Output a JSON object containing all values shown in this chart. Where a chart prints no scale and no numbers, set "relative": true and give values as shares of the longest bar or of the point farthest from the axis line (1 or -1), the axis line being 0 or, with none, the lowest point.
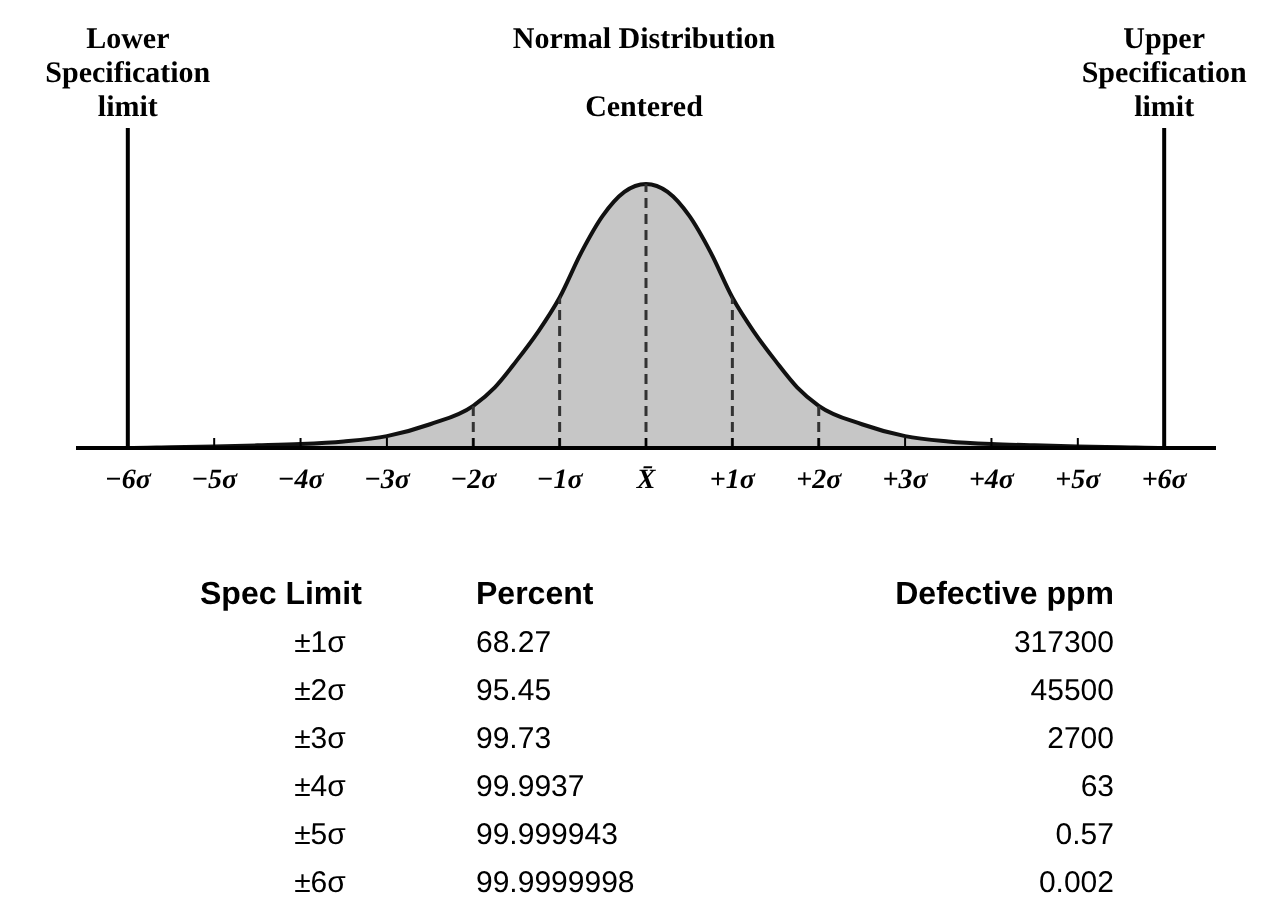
{
  "chart_data": {
    "type": "area",
    "title": "Normal Distribution",
    "subtitle": "Centered",
    "relative": true,
    "x": [
      -6.6,
      -6,
      -5.5,
      -5,
      -4.5,
      -4,
      -3.5,
      -3,
      -2.5,
      -2,
      -1.75,
      -1.5,
      -1.25,
      -1,
      -0.75,
      -0.5,
      -0.25,
      0,
      0.25,
      0.5,
      0.75,
      1,
      1.25,
      1.5,
      1.75,
      2,
      2.5,
      3,
      3.5,
      4,
      4.5,
      5,
      5.5,
      6,
      6.6
    ],
    "series": [
      {
        "color": "#b8b8b8",
        "values": [
          0,
          0,
          0.003,
          0.006,
          0.01,
          0.015,
          0.025,
          0.045,
          0.09,
          0.16,
          0.23,
          0.33,
          0.44,
          0.57,
          0.74,
          0.88,
          0.97,
          1,
          0.97,
          0.88,
          0.74,
          0.57,
          0.44,
          0.33,
          0.23,
          0.16,
          0.09,
          0.045,
          0.025,
          0.015,
          0.01,
          0.006,
          0.003,
          0,
          0
        ]
      }
    ],
    "xlim": [
      -6.6,
      6.6
    ],
    "xticks": [
      {
        "value": -6,
        "label": "−6σ"
      },
      {
        "value": -5,
        "label": "−5σ"
      },
      {
        "value": -4,
        "label": "−4σ"
      },
      {
        "value": -3,
        "label": "−3σ"
      },
      {
        "value": -2,
        "label": "−2σ"
      },
      {
        "value": -1,
        "label": "−1σ"
      },
      {
        "value": 0,
        "label": "X̄"
      },
      {
        "value": 1,
        "label": "+1σ"
      },
      {
        "value": 2,
        "label": "+2σ"
      },
      {
        "value": 3,
        "label": "+3σ"
      },
      {
        "value": 4,
        "label": "+4σ"
      },
      {
        "value": 5,
        "label": "+5σ"
      },
      {
        "value": 6,
        "label": "+6σ"
      }
    ],
    "ref_lines": [
      {
        "axis": "x",
        "value": -6,
        "label": "Lower Specification limit",
        "color": "#000000",
        "line_style": "solid"
      },
      {
        "axis": "x",
        "value": 6,
        "label": "Upper Specification limit",
        "color": "#000000",
        "line_style": "solid"
      },
      {
        "axis": "x",
        "value": -2,
        "color": "#333333",
        "line_style": "dashed"
      },
      {
        "axis": "x",
        "value": -1,
        "color": "#333333",
        "line_style": "dashed"
      },
      {
        "axis": "x",
        "value": 0,
        "color": "#333333",
        "line_style": "dashed"
      },
      {
        "axis": "x",
        "value": 1,
        "color": "#333333",
        "line_style": "dashed"
      },
      {
        "axis": "x",
        "value": 2,
        "color": "#333333",
        "line_style": "dashed"
      }
    ],
    "annotations": [
      "Spec Limit",
      "Percent",
      "Defective ppm",
      "±1σ",
      "68.27",
      "317300",
      "±2σ",
      "95.45",
      "45500",
      "±3σ",
      "99.73",
      "2700",
      "±4σ",
      "99.9937",
      "63",
      "±5σ",
      "99.999943",
      "0.57",
      "±6σ",
      "99.9999998",
      "0.002"
    ]
  }
}
